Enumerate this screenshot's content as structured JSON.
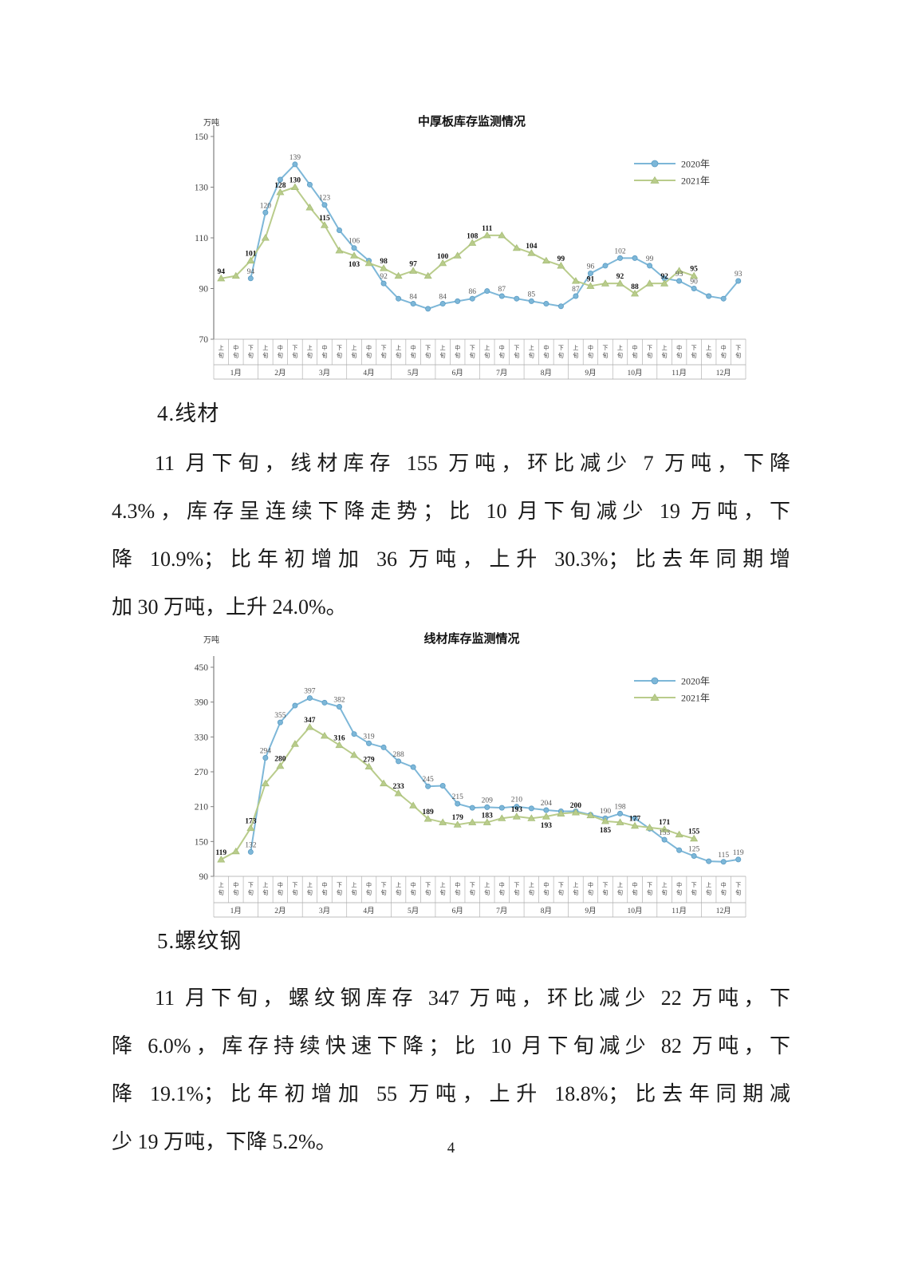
{
  "page": {
    "number": "4"
  },
  "sections": [
    {
      "heading": "4.线材",
      "lines": [
        "11 月下旬，线材库存 155 万吨，环比减少 7 万吨，下降",
        "4.3%，库存呈连续下降走势；比 10 月下旬减少 19 万吨，下",
        "降 10.9%；比年初增加 36 万吨，上升 30.3%；比去年同期增",
        "加 30 万吨，上升 24.0%。"
      ]
    },
    {
      "heading": "5.螺纹钢",
      "lines": [
        "11 月下旬，螺纹钢库存 347 万吨，环比减少 22 万吨，下",
        "降 6.0%，库存持续快速下降；比 10 月下旬减少 82 万吨，下",
        "降 19.1%；比年初增加 55 万吨，上升 18.8%；比去年同期减",
        "少 19 万吨，下降 5.2%。"
      ]
    }
  ],
  "chart_data": [
    {
      "type": "line",
      "title": "中厚板库存监测情况",
      "unit_label": "万吨",
      "ylim": [
        70,
        150
      ],
      "yticks": [
        70,
        90,
        110,
        130,
        150
      ],
      "months": [
        "1月",
        "2月",
        "3月",
        "4月",
        "5月",
        "6月",
        "7月",
        "8月",
        "9月",
        "10月",
        "11月",
        "12月"
      ],
      "periods": [
        "上旬",
        "中旬",
        "下旬"
      ],
      "legend_position": "upper-right",
      "grid": false,
      "series": [
        {
          "name": "2020年",
          "color": "#7db7d8",
          "edge": "#5b9cc4",
          "marker": "circle",
          "label_color": "#595959",
          "label_bold": false,
          "values": [
            null,
            null,
            94,
            120,
            133,
            139,
            131,
            123,
            113,
            106,
            101,
            92,
            86,
            84,
            82,
            84,
            85,
            86,
            89,
            87,
            86,
            85,
            84,
            83,
            87,
            96,
            99,
            102,
            102,
            99,
            94,
            93,
            90,
            87,
            86,
            93
          ],
          "labeled": [
            2,
            3,
            5,
            7,
            9,
            11,
            13,
            15,
            17,
            19,
            21,
            24,
            25,
            27,
            29,
            31,
            32,
            35
          ]
        },
        {
          "name": "2021年",
          "color": "#b9cc8b",
          "edge": "#a3bb74",
          "marker": "triangle",
          "label_color": "#111111",
          "label_bold": true,
          "values": [
            94,
            95,
            101,
            110,
            128,
            130,
            122,
            115,
            105,
            103,
            100,
            98,
            95,
            97,
            95,
            100,
            103,
            108,
            111,
            111,
            106,
            104,
            101,
            99,
            93,
            91,
            92,
            92,
            88,
            92,
            92,
            97,
            95,
            null,
            null,
            null
          ],
          "labeled": [
            0,
            2,
            4,
            5,
            7,
            9,
            11,
            13,
            15,
            17,
            18,
            21,
            23,
            25,
            27,
            28,
            30,
            32
          ]
        }
      ]
    },
    {
      "type": "line",
      "title": "线材库存监测情况",
      "unit_label": "万吨",
      "ylim": [
        90,
        450
      ],
      "yticks": [
        90,
        150,
        210,
        270,
        330,
        390,
        450
      ],
      "months": [
        "1月",
        "2月",
        "3月",
        "4月",
        "5月",
        "6月",
        "7月",
        "8月",
        "9月",
        "10月",
        "11月",
        "12月"
      ],
      "periods": [
        "上旬",
        "中旬",
        "下旬"
      ],
      "legend_position": "upper-right",
      "grid": false,
      "series": [
        {
          "name": "2020年",
          "color": "#7db7d8",
          "edge": "#5b9cc4",
          "marker": "circle",
          "label_color": "#595959",
          "label_bold": false,
          "values": [
            null,
            null,
            132,
            294,
            355,
            384,
            397,
            389,
            382,
            335,
            319,
            312,
            288,
            278,
            245,
            246,
            215,
            208,
            209,
            208,
            210,
            207,
            204,
            202,
            202,
            196,
            190,
            198,
            190,
            172,
            153,
            135,
            125,
            116,
            115,
            119
          ],
          "labeled": [
            2,
            3,
            4,
            6,
            8,
            10,
            12,
            14,
            16,
            18,
            20,
            22,
            26,
            27,
            30,
            32,
            34,
            35
          ]
        },
        {
          "name": "2021年",
          "color": "#b9cc8b",
          "edge": "#a3bb74",
          "marker": "triangle",
          "label_color": "#111111",
          "label_bold": true,
          "values": [
            119,
            133,
            173,
            250,
            280,
            318,
            347,
            332,
            316,
            299,
            279,
            250,
            233,
            212,
            189,
            183,
            179,
            183,
            183,
            190,
            193,
            190,
            193,
            198,
            200,
            195,
            185,
            183,
            177,
            174,
            171,
            162,
            155,
            null,
            null,
            null
          ],
          "labeled": [
            0,
            2,
            4,
            6,
            8,
            10,
            12,
            14,
            16,
            18,
            20,
            22,
            24,
            26,
            28,
            30,
            32
          ]
        }
      ]
    }
  ]
}
